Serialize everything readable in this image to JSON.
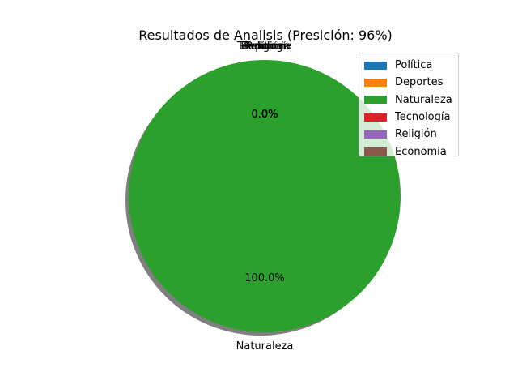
{
  "chart_data": {
    "type": "pie",
    "title": "Resultados de Analisis (Presición: 96%)",
    "labels": [
      "Política",
      "Deportes",
      "Naturaleza",
      "Tecnología",
      "Religión",
      "Economia"
    ],
    "values": [
      0,
      0,
      100,
      0,
      0,
      0
    ],
    "percent_labels": [
      "0.0%",
      "0.0%",
      "100.0%",
      "0.0%",
      "0.0%",
      "0.0%"
    ],
    "colors": [
      "#1f77b4",
      "#ff7f0e",
      "#2ca02c",
      "#d62728",
      "#9467bd",
      "#8c564b"
    ],
    "shadow": true,
    "legend_placement": "top-right"
  }
}
